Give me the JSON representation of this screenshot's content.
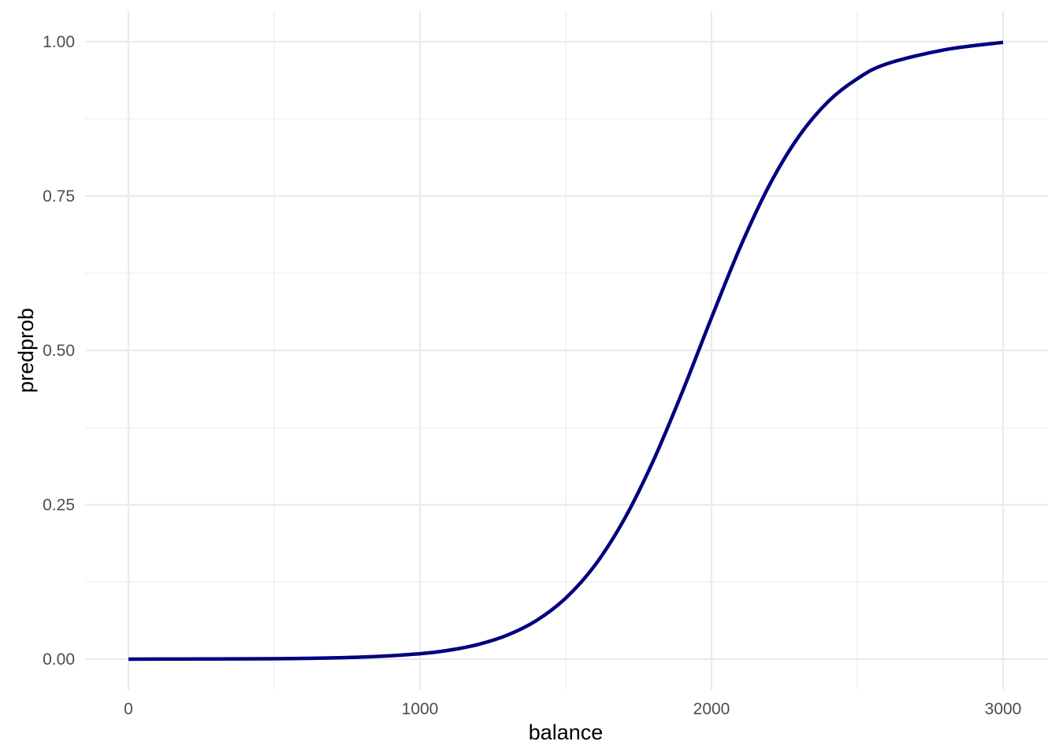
{
  "chart_data": {
    "type": "line",
    "title": "",
    "xlabel": "balance",
    "ylabel": "predprob",
    "xlim": [
      0,
      3000
    ],
    "ylim": [
      0,
      1
    ],
    "x_ticks": [
      0,
      1000,
      2000,
      3000
    ],
    "x_tick_labels": [
      "0",
      "1000",
      "2000",
      "3000"
    ],
    "y_ticks": [
      0,
      0.25,
      0.5,
      0.75,
      1
    ],
    "y_tick_labels": [
      "0.00",
      "0.25",
      "0.50",
      "0.75",
      "1.00"
    ],
    "grid": true,
    "legend": "none",
    "line_color": "#000080",
    "series": [
      {
        "x": [
          0,
          200,
          400,
          600,
          800,
          1000,
          1100,
          1200,
          1300,
          1400,
          1500,
          1600,
          1700,
          1800,
          1900,
          2000,
          2100,
          2200,
          2300,
          2400,
          2500,
          2600,
          2800,
          3000
        ],
        "values": [
          0.0,
          0.0002,
          0.0005,
          0.0012,
          0.0033,
          0.0087,
          0.0145,
          0.0239,
          0.039,
          0.0627,
          0.0989,
          0.152,
          0.226,
          0.321,
          0.433,
          0.553,
          0.669,
          0.769,
          0.847,
          0.903,
          0.94,
          0.964,
          0.987,
          0.999
        ]
      }
    ]
  }
}
